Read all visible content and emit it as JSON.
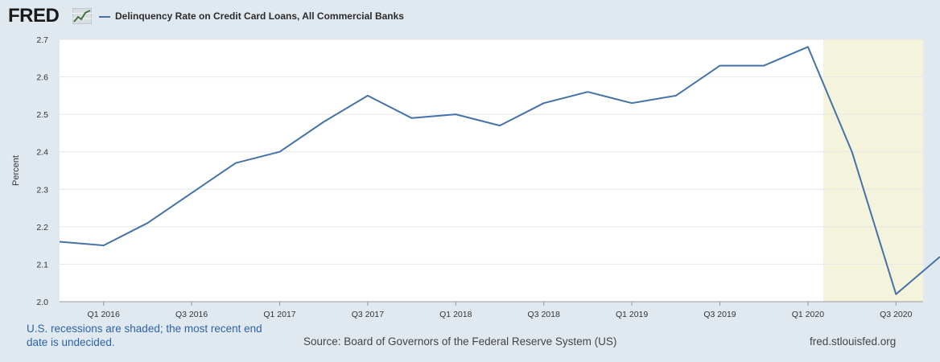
{
  "header": {
    "logo_text": "FRED",
    "logo_icon": "chart-line-icon",
    "legend_label": "Delinquency Rate on Credit Card Loans, All Commercial Banks"
  },
  "footer": {
    "note": "U.S. recessions are shaded; the most recent end date is undecided.",
    "source": "Source: Board of Governors of the Federal Reserve System (US)",
    "site": "fred.stlouisfed.org"
  },
  "colors": {
    "series": "#4572a7",
    "recession": "#f4f3dc",
    "background": "#e1e9f0",
    "note": "#2b63a8"
  },
  "chart_data": {
    "type": "line",
    "title": "",
    "xlabel": "",
    "ylabel": "Percent",
    "ylim": [
      2.0,
      2.7
    ],
    "yticks": [
      "2.0",
      "2.1",
      "2.2",
      "2.3",
      "2.4",
      "2.5",
      "2.6",
      "2.7"
    ],
    "grid": true,
    "legend": "top-left",
    "x": [
      "Q4 2015",
      "Q1 2016",
      "Q2 2016",
      "Q3 2016",
      "Q4 2016",
      "Q1 2017",
      "Q2 2017",
      "Q3 2017",
      "Q4 2017",
      "Q1 2018",
      "Q2 2018",
      "Q3 2018",
      "Q4 2018",
      "Q1 2019",
      "Q2 2019",
      "Q3 2019",
      "Q4 2019",
      "Q1 2020",
      "Q2 2020",
      "Q3 2020",
      "Q4 2020"
    ],
    "xticks": [
      "Q1 2016",
      "Q3 2016",
      "Q1 2017",
      "Q3 2017",
      "Q1 2018",
      "Q3 2018",
      "Q1 2019",
      "Q3 2019",
      "Q1 2020",
      "Q3 2020"
    ],
    "series": [
      {
        "name": "Delinquency Rate on Credit Card Loans, All Commercial Banks",
        "values": [
          2.16,
          2.15,
          2.21,
          2.29,
          2.37,
          2.4,
          2.48,
          2.55,
          2.49,
          2.5,
          2.47,
          2.53,
          2.56,
          2.53,
          2.55,
          2.63,
          2.63,
          2.68,
          2.4,
          2.02,
          2.12
        ]
      }
    ],
    "recession_shading": [
      {
        "start": "Q1 2020",
        "end": "Q4 2020"
      }
    ]
  }
}
